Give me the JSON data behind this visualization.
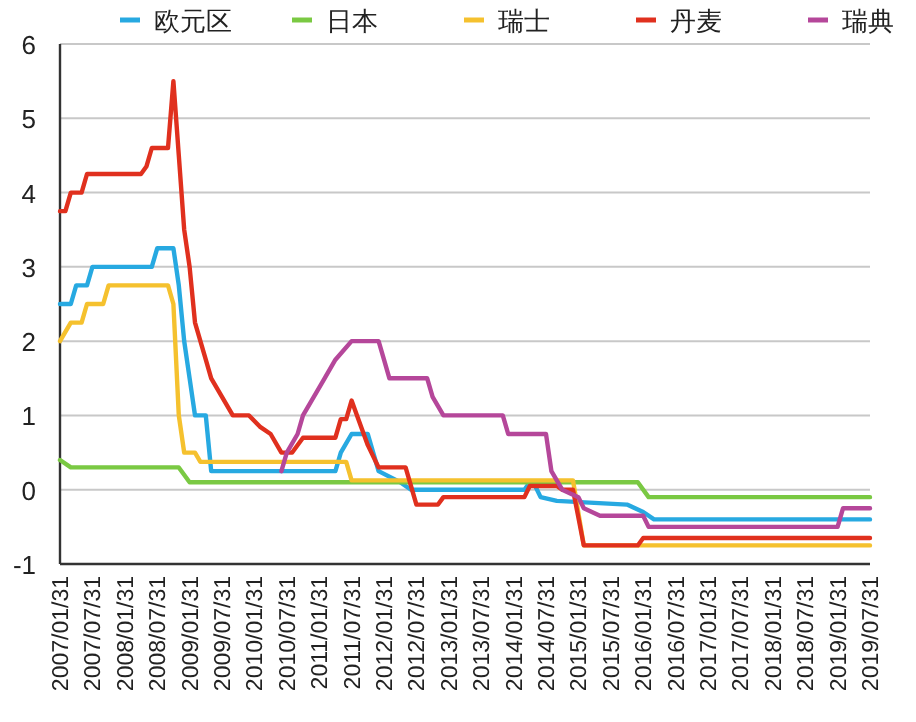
{
  "chart_data": {
    "type": "line",
    "grid": "y",
    "legend": "top",
    "marker": "none",
    "xlim": [
      "2007-01",
      "2019-07"
    ],
    "xticks": [
      {
        "value": "2007-01",
        "label": "2007/01/31"
      },
      {
        "value": "2007-07",
        "label": "2007/07/31"
      },
      {
        "value": "2008-01",
        "label": "2008/01/31"
      },
      {
        "value": "2008-07",
        "label": "2008/07/31"
      },
      {
        "value": "2009-01",
        "label": "2009/01/31"
      },
      {
        "value": "2009-07",
        "label": "2009/07/31"
      },
      {
        "value": "2010-01",
        "label": "2010/01/31"
      },
      {
        "value": "2010-07",
        "label": "2010/07/31"
      },
      {
        "value": "2011-01",
        "label": "2011/01/31"
      },
      {
        "value": "2011-07",
        "label": "2011/07/31"
      },
      {
        "value": "2012-01",
        "label": "2012/01/31"
      },
      {
        "value": "2012-07",
        "label": "2012/07/31"
      },
      {
        "value": "2013-01",
        "label": "2013/01/31"
      },
      {
        "value": "2013-07",
        "label": "2013/07/31"
      },
      {
        "value": "2014-01",
        "label": "2014/01/31"
      },
      {
        "value": "2014-07",
        "label": "2014/07/31"
      },
      {
        "value": "2015-01",
        "label": "2015/01/31"
      },
      {
        "value": "2015-07",
        "label": "2015/07/31"
      },
      {
        "value": "2016-01",
        "label": "2016/01/31"
      },
      {
        "value": "2016-07",
        "label": "2016/07/31"
      },
      {
        "value": "2017-01",
        "label": "2017/01/31"
      },
      {
        "value": "2017-07",
        "label": "2017/07/31"
      },
      {
        "value": "2018-01",
        "label": "2018/01/31"
      },
      {
        "value": "2018-07",
        "label": "2018/07/31"
      },
      {
        "value": "2019-01",
        "label": "2019/01/31"
      },
      {
        "value": "2019-07",
        "label": "2019/07/31"
      }
    ],
    "ylim": [
      -1,
      6
    ],
    "yticks": [
      -1,
      0,
      1,
      2,
      3,
      4,
      5,
      6
    ],
    "series": [
      {
        "name": "欧元区",
        "color": "#27a9e1",
        "x": [
          "2007-01",
          "2007-03",
          "2007-04",
          "2007-06",
          "2007-07",
          "2008-06",
          "2008-07",
          "2008-10",
          "2008-11",
          "2008-12",
          "2009-01",
          "2009-02",
          "2009-04",
          "2009-05",
          "2011-04",
          "2011-05",
          "2011-07",
          "2011-10",
          "2011-11",
          "2011-12",
          "2012-04",
          "2012-06",
          "2014-03",
          "2014-04",
          "2014-05",
          "2014-06",
          "2014-09",
          "2015-10",
          "2016-01",
          "2016-03",
          "2019-07"
        ],
        "values": [
          2.5,
          2.5,
          2.75,
          2.75,
          3.0,
          3.0,
          3.25,
          3.25,
          2.75,
          2.0,
          1.5,
          1.0,
          1.0,
          0.25,
          0.25,
          0.5,
          0.75,
          0.75,
          0.5,
          0.25,
          0.1,
          0.0,
          0.0,
          0.1,
          0.05,
          -0.1,
          -0.15,
          -0.2,
          -0.3,
          -0.4,
          -0.4
        ]
      },
      {
        "name": "日本",
        "color": "#7ac943",
        "x": [
          "2007-01",
          "2007-03",
          "2008-11",
          "2009-01",
          "2015-12",
          "2016-02",
          "2019-07"
        ],
        "values": [
          0.4,
          0.3,
          0.3,
          0.1,
          0.1,
          -0.1,
          -0.1
        ]
      },
      {
        "name": "瑞士",
        "color": "#f5c12e",
        "x": [
          "2007-01",
          "2007-03",
          "2007-05",
          "2007-06",
          "2007-09",
          "2007-10",
          "2008-09",
          "2008-10",
          "2008-11",
          "2008-12",
          "2009-02",
          "2009-03",
          "2011-06",
          "2011-07",
          "2014-12",
          "2015-02",
          "2019-07"
        ],
        "values": [
          2.0,
          2.25,
          2.25,
          2.5,
          2.5,
          2.75,
          2.75,
          2.5,
          1.0,
          0.5,
          0.5,
          0.375,
          0.375,
          0.125,
          0.125,
          -0.75,
          -0.75
        ]
      },
      {
        "name": "丹麦",
        "color": "#e0301e",
        "x": [
          "2007-01",
          "2007-02",
          "2007-03",
          "2007-05",
          "2007-06",
          "2008-04",
          "2008-05",
          "2008-06",
          "2008-09",
          "2008-10",
          "2008-11",
          "2008-12",
          "2009-01",
          "2009-02",
          "2009-04",
          "2009-05",
          "2009-07",
          "2009-09",
          "2009-12",
          "2010-02",
          "2010-04",
          "2010-06",
          "2010-08",
          "2010-10",
          "2011-04",
          "2011-05",
          "2011-06",
          "2011-07",
          "2011-08",
          "2011-10",
          "2011-12",
          "2012-05",
          "2012-07",
          "2012-11",
          "2012-12",
          "2014-03",
          "2014-04",
          "2014-09",
          "2014-10",
          "2014-12",
          "2015-02",
          "2015-12",
          "2016-01",
          "2019-07"
        ],
        "values": [
          3.75,
          3.75,
          4.0,
          4.0,
          4.25,
          4.25,
          4.35,
          4.6,
          4.6,
          5.5,
          4.5,
          3.5,
          3.0,
          2.25,
          1.75,
          1.5,
          1.25,
          1.0,
          1.0,
          0.85,
          0.75,
          0.5,
          0.5,
          0.7,
          0.7,
          0.95,
          0.95,
          1.2,
          1.0,
          0.6,
          0.3,
          0.3,
          -0.2,
          -0.2,
          -0.1,
          -0.1,
          0.05,
          0.05,
          0.0,
          0.0,
          -0.75,
          -0.75,
          -0.65,
          -0.65
        ]
      },
      {
        "name": "瑞典",
        "color": "#b5479a",
        "x": [
          "2010-06",
          "2010-07",
          "2010-09",
          "2010-10",
          "2010-12",
          "2011-02",
          "2011-04",
          "2011-07",
          "2011-12",
          "2012-01",
          "2012-02",
          "2012-09",
          "2012-10",
          "2012-12",
          "2013-11",
          "2013-12",
          "2014-07",
          "2014-08",
          "2014-10",
          "2015-01",
          "2015-02",
          "2015-05",
          "2016-01",
          "2016-02",
          "2019-01",
          "2019-02",
          "2019-07"
        ],
        "values": [
          0.25,
          0.5,
          0.75,
          1.0,
          1.25,
          1.5,
          1.75,
          2.0,
          2.0,
          1.75,
          1.5,
          1.5,
          1.25,
          1.0,
          1.0,
          0.75,
          0.75,
          0.25,
          0.0,
          -0.1,
          -0.25,
          -0.35,
          -0.35,
          -0.5,
          -0.5,
          -0.25,
          -0.25
        ]
      }
    ]
  }
}
